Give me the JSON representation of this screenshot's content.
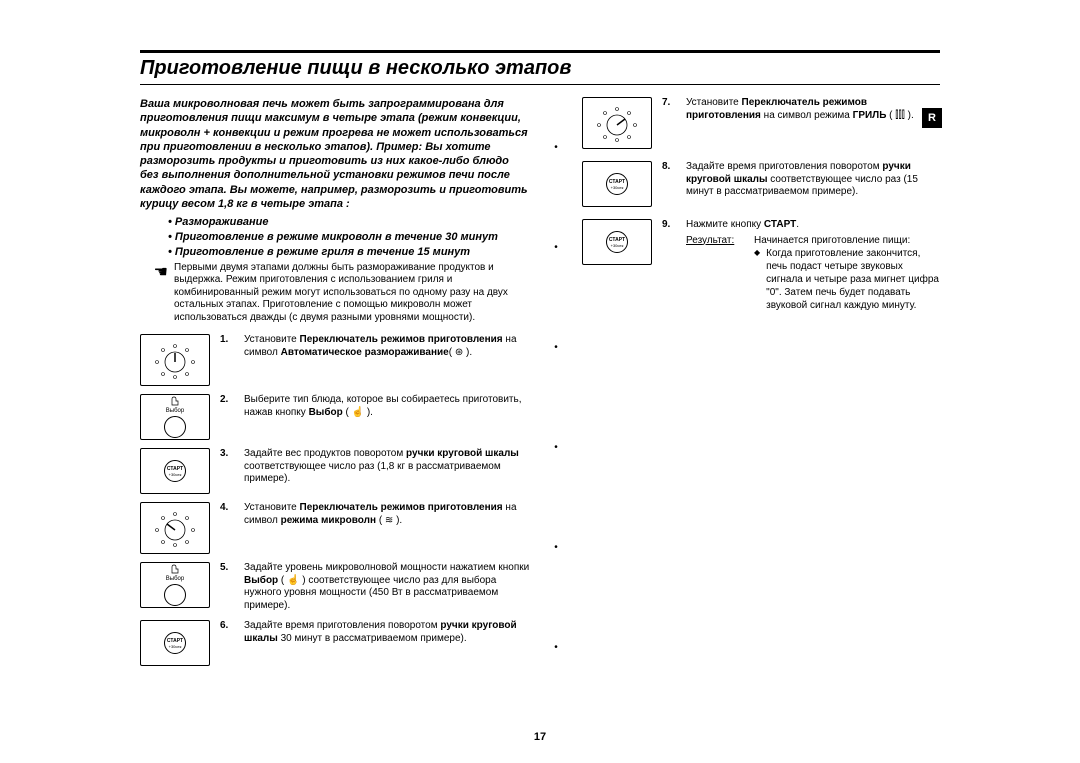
{
  "title": "Приготовление пищи в несколько этапов",
  "intro": "Ваша микроволновая печь может быть запрограммирована для приготовления пищи максимум в четыре этапа (режим конвекции, микроволн + конвекции и режим прогрева не может использоваться при приготовлении в несколько этапов). Пример: Вы хотите разморозить продукты и приготовить из них какое-либо блюдо без выполнения дополнительной установки режимов печи после каждого этапа. Вы можете, например, разморозить и приготовить курицу весом 1,8 кг в четыре этапа :",
  "bullets": [
    "Размораживание",
    "Приготовление в режиме микроволн в течение 30 минут",
    "Приготовление в режиме гриля в течение 15 минут"
  ],
  "note": "Первыми двумя этапами должны быть размораживание продуктов и выдержка. Режим приготовления с использованием гриля и комбинированный режим могут использоваться по одному разу на двух остальных этапах. Приготовление с помощью микроволн может использоваться дважды (с двумя разными уровнями мощности).",
  "steps_left": [
    {
      "n": "1.",
      "text": "Установите <b>Переключатель режимов приготовления</b> на символ <b>Автоматическое размораживание</b>( ⊛ )."
    },
    {
      "n": "2.",
      "text": "Выберите тип блюда, которое вы собираетесь приготовить, нажав кнопку <b>Выбор</b> ( ☝ )."
    },
    {
      "n": "3.",
      "text": "Задайте вес продуктов поворотом <b>ручки круговой шкалы</b> соответствующее число раз (1,8 кг в рассматриваемом примере)."
    },
    {
      "n": "4.",
      "text": "Установите <b>Переключатель режимов приготовления</b> на символ <b>режима микроволн</b> ( ≋ )."
    },
    {
      "n": "5.",
      "text": "Задайте уровень микроволновой мощности нажатием кнопки <b>Выбор</b> ( ☝ ) соответствующее число раз для выбора нужного уровня мощности (450 Вт в рассматриваемом примере)."
    },
    {
      "n": "6.",
      "text": "Задайте время приготовления поворотом <b>ручки круговой шкалы</b> 30 минут в рассматриваемом примере)."
    }
  ],
  "steps_right": [
    {
      "n": "7.",
      "text": "Установите <b>Переключатель режимов приготовления</b> на символ режима <b>ГРИЛЬ</b> ( ⫿⫿⫿ )."
    },
    {
      "n": "8.",
      "text": "Задайте время приготовления поворотом <b>ручки круговой шкалы</b> соответствующее число раз (15 минут в рассматриваемом примере)."
    },
    {
      "n": "9.",
      "text": "Нажмите кнопку <b>СТАРТ</b>."
    }
  ],
  "result_label": "Результат:",
  "result_line1": "Начинается приготовление пищи:",
  "result_line2": "Когда приготовление закончится, печь подаст четыре звуковых сигнала и четыре раза мигнет цифра \"0\". Затем печь будет подавать звуковой сигнал каждую минуту.",
  "icon_labels": {
    "select": "Выбор",
    "start": "СТАРТ",
    "thirty": "+30сек"
  },
  "side_tab": "R",
  "page": "17"
}
